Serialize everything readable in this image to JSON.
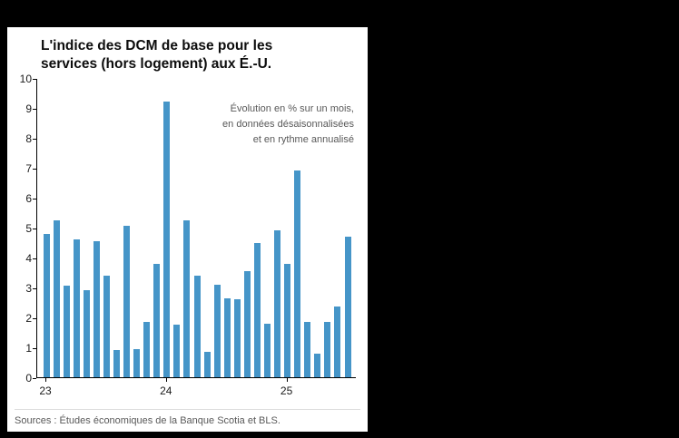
{
  "chart_data": {
    "type": "bar",
    "title": "L'indice des DCM de base pour les services (hors logement) aux É.-U.",
    "annotation": "Évolution en % sur un mois,\nen données désaisonnalisées\net en rythme annualisé",
    "xlabel": "",
    "ylabel": "",
    "ylim": [
      0,
      10
    ],
    "y_ticks": [
      0,
      1,
      2,
      3,
      4,
      5,
      6,
      7,
      8,
      9,
      10
    ],
    "x_tick_labels": [
      "23",
      "24",
      "25"
    ],
    "x_tick_positions": [
      0,
      12,
      24
    ],
    "grid": false,
    "legend": false,
    "bar_color": "#4595c8",
    "x_note": "monthly bars from Jan 2023 to Jul 2025",
    "values": [
      4.8,
      5.25,
      3.05,
      4.6,
      2.9,
      4.55,
      3.4,
      0.9,
      5.05,
      0.95,
      1.85,
      3.8,
      9.2,
      1.75,
      5.25,
      3.4,
      0.85,
      3.1,
      2.65,
      2.6,
      3.55,
      4.5,
      1.8,
      4.9,
      3.8,
      6.9,
      1.85,
      0.8,
      1.85,
      2.35,
      4.7
    ]
  },
  "source": "Sources : Études économiques de la Banque Scotia et BLS."
}
